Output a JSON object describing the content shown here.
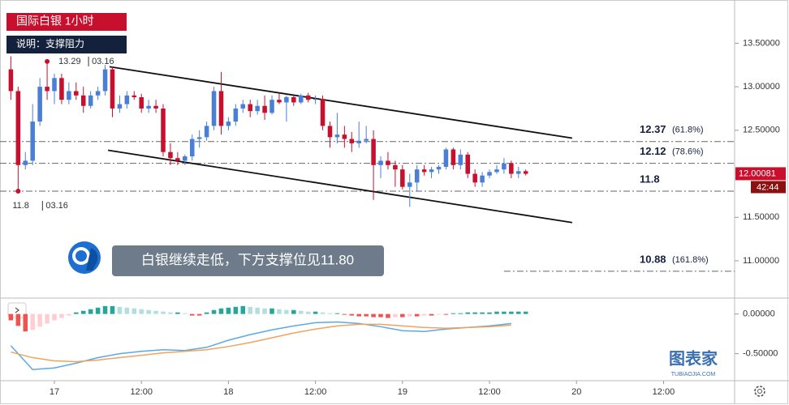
{
  "chart_data": {
    "type": "candlestick",
    "title": "国际白银 1小时",
    "subtitle": "说明：支撑阻力",
    "annotation": "白银继续走低，下方支撑位见11.80",
    "up_color": "#4a7fd6",
    "down_color": "#c8102e",
    "x": [
      0,
      1,
      2,
      3,
      4,
      5,
      6,
      7,
      8,
      9,
      10,
      11,
      12,
      13,
      14,
      15,
      16,
      17,
      18,
      19,
      20,
      21,
      22,
      23,
      24,
      25,
      26,
      27,
      28,
      29,
      30,
      31,
      32,
      33,
      34,
      35,
      36,
      37,
      38,
      39,
      40,
      41,
      42,
      43,
      44,
      45,
      46,
      47,
      48,
      49,
      50,
      51,
      52,
      53,
      54,
      55,
      56,
      57,
      58,
      59,
      60,
      61,
      62,
      63,
      64,
      65,
      66,
      67,
      68,
      69,
      70,
      71
    ],
    "open": [
      13.2,
      12.95,
      12.1,
      12.15,
      12.6,
      13.0,
      12.95,
      13.1,
      12.85,
      12.95,
      12.9,
      12.78,
      12.9,
      12.95,
      13.2,
      12.75,
      12.8,
      12.9,
      12.88,
      12.75,
      12.78,
      12.75,
      12.25,
      12.18,
      12.15,
      12.2,
      12.4,
      12.42,
      12.55,
      12.95,
      12.55,
      12.6,
      12.75,
      12.8,
      12.72,
      12.78,
      12.7,
      12.85,
      12.82,
      12.88,
      12.82,
      12.9,
      12.85,
      12.86,
      12.55,
      12.42,
      12.45,
      12.4,
      12.35,
      12.38,
      12.4,
      12.1,
      12.15,
      12.1,
      12.05,
      11.85,
      11.9,
      12.05,
      12.02,
      12.05,
      12.08,
      12.28,
      12.1,
      12.22,
      12.0,
      11.9,
      11.98,
      12.02,
      12.05,
      12.12,
      12.0,
      12.03
    ],
    "high": [
      13.35,
      13.0,
      12.25,
      12.8,
      13.1,
      13.29,
      13.15,
      13.15,
      13.05,
      13.05,
      13.0,
      12.95,
      13.0,
      13.25,
      13.23,
      12.9,
      12.95,
      12.95,
      12.92,
      12.85,
      12.85,
      12.8,
      12.35,
      12.25,
      12.22,
      12.45,
      12.5,
      12.6,
      13.0,
      13.17,
      12.65,
      12.8,
      12.85,
      12.85,
      12.85,
      12.9,
      12.9,
      12.92,
      12.9,
      12.9,
      12.92,
      12.93,
      12.9,
      12.9,
      12.6,
      12.7,
      12.55,
      12.48,
      12.6,
      12.55,
      12.5,
      12.2,
      12.25,
      12.15,
      12.1,
      12.0,
      12.1,
      12.1,
      12.08,
      12.1,
      12.3,
      12.3,
      12.28,
      12.25,
      12.05,
      12.02,
      12.05,
      12.1,
      12.18,
      12.15,
      12.08,
      12.05
    ],
    "low": [
      12.85,
      11.8,
      12.05,
      12.1,
      12.55,
      12.85,
      12.8,
      12.8,
      12.8,
      12.85,
      12.7,
      12.75,
      12.85,
      12.9,
      12.65,
      12.7,
      12.75,
      12.85,
      12.7,
      12.7,
      12.7,
      12.2,
      12.1,
      12.1,
      12.1,
      12.15,
      12.3,
      12.38,
      12.5,
      12.45,
      12.5,
      12.55,
      12.7,
      12.65,
      12.68,
      12.62,
      12.68,
      12.8,
      12.6,
      12.78,
      12.8,
      12.82,
      12.8,
      12.5,
      12.3,
      12.35,
      12.3,
      12.25,
      12.3,
      12.35,
      11.7,
      11.95,
      12.05,
      11.85,
      11.82,
      11.62,
      11.8,
      11.98,
      11.95,
      12.0,
      12.05,
      12.05,
      12.05,
      11.95,
      11.85,
      11.85,
      11.95,
      12.0,
      12.0,
      11.95,
      11.95,
      11.98
    ],
    "close": [
      12.95,
      12.1,
      12.15,
      12.6,
      13.0,
      12.95,
      13.1,
      12.85,
      12.95,
      12.9,
      12.78,
      12.9,
      12.95,
      13.2,
      12.75,
      12.8,
      12.9,
      12.88,
      12.75,
      12.78,
      12.75,
      12.25,
      12.18,
      12.15,
      12.2,
      12.4,
      12.42,
      12.55,
      12.95,
      12.55,
      12.6,
      12.75,
      12.8,
      12.72,
      12.78,
      12.7,
      12.85,
      12.82,
      12.88,
      12.82,
      12.9,
      12.85,
      12.86,
      12.55,
      12.42,
      12.45,
      12.4,
      12.35,
      12.38,
      12.4,
      12.1,
      12.15,
      12.1,
      12.05,
      11.85,
      11.9,
      12.05,
      12.02,
      12.05,
      12.08,
      12.28,
      12.1,
      12.22,
      12.0,
      11.9,
      11.98,
      12.02,
      12.05,
      12.12,
      12.0,
      12.03,
      12.0
    ],
    "xlim": [
      -1.5,
      99.8
    ],
    "xticks": [
      {
        "value": 6,
        "label": "17"
      },
      {
        "value": 18,
        "label": "12:00"
      },
      {
        "value": 30,
        "label": "18"
      },
      {
        "value": 42,
        "label": "12:00"
      },
      {
        "value": 54,
        "label": "19"
      },
      {
        "value": 66,
        "label": "12:00"
      },
      {
        "value": 78,
        "label": "20"
      },
      {
        "value": 90,
        "label": "12:00"
      }
    ],
    "ylim": [
      10.6,
      13.95
    ],
    "yticks": [
      {
        "value": 13.5,
        "label": "13.50000"
      },
      {
        "value": 13.0,
        "label": "13.00000"
      },
      {
        "value": 12.5,
        "label": "12.50000"
      },
      {
        "value": 11.5,
        "label": "11.50000"
      },
      {
        "value": 11.0,
        "label": "11.00000"
      }
    ],
    "trendlines": [
      {
        "x": [
          13.6,
          77.4
        ],
        "y": [
          13.23,
          12.41
        ]
      },
      {
        "x": [
          13.4,
          77.4
        ],
        "y": [
          12.27,
          11.44
        ]
      }
    ],
    "levels": [
      {
        "value": 12.37,
        "note": "(61.8%)",
        "from": -1.5
      },
      {
        "value": 12.12,
        "note": "(78.6%)",
        "from": -1.5
      },
      {
        "value": 11.8,
        "from": -1.5
      },
      {
        "value": 10.88,
        "note": "(161.8%)",
        "from": 68
      }
    ],
    "markers": [
      {
        "x": 5,
        "value": 13.29,
        "date": "03.16",
        "side": "right"
      },
      {
        "x": 1,
        "value": 11.8,
        "date": "03.16",
        "side": "below"
      }
    ],
    "last_price": {
      "value": 12.00081,
      "countdown": "42:44"
    },
    "macd": {
      "ylim": [
        -0.82,
        0.18
      ],
      "yticks": [
        {
          "value": 0,
          "label": "0.00000"
        },
        {
          "value": -0.5,
          "label": "-0.50000"
        }
      ],
      "histogram": [
        -0.08,
        -0.15,
        -0.22,
        -0.2,
        -0.16,
        -0.12,
        -0.08,
        -0.05,
        -0.02,
        0.02,
        0.04,
        0.06,
        0.08,
        0.1,
        0.1,
        0.09,
        0.08,
        0.07,
        0.06,
        0.05,
        0.04,
        0.03,
        0.02,
        0.02,
        0.01,
        -0.02,
        -0.02,
        0.02,
        0.05,
        0.07,
        0.08,
        0.09,
        0.1,
        0.09,
        0.08,
        0.07,
        0.07,
        0.06,
        0.05,
        0.05,
        0.04,
        0.03,
        0.03,
        0.02,
        0.01,
        0.01,
        -0.01,
        -0.02,
        -0.03,
        -0.03,
        -0.04,
        -0.04,
        -0.05,
        -0.04,
        -0.04,
        -0.03,
        -0.03,
        -0.02,
        -0.02,
        -0.01,
        -0.01,
        0.01,
        0.01,
        0.02,
        0.02,
        0.02,
        0.02,
        0.03,
        0.03,
        0.03,
        0.03,
        0.03
      ],
      "lines": [
        {
          "color": "#5aa9e6",
          "x": [
            0,
            3,
            6,
            9,
            12,
            15,
            18,
            21,
            24,
            27,
            30,
            33,
            36,
            39,
            42,
            45,
            48,
            51,
            54,
            57,
            60,
            63,
            66,
            69
          ],
          "values": [
            -0.4,
            -0.7,
            -0.68,
            -0.62,
            -0.55,
            -0.5,
            -0.47,
            -0.45,
            -0.46,
            -0.42,
            -0.33,
            -0.26,
            -0.2,
            -0.15,
            -0.11,
            -0.1,
            -0.12,
            -0.16,
            -0.21,
            -0.22,
            -0.19,
            -0.17,
            -0.15,
            -0.12
          ]
        },
        {
          "color": "#f0a35e",
          "x": [
            0,
            3,
            6,
            9,
            12,
            15,
            18,
            21,
            24,
            27,
            30,
            33,
            36,
            39,
            42,
            45,
            48,
            51,
            54,
            57,
            60,
            63,
            66,
            69
          ],
          "values": [
            -0.48,
            -0.55,
            -0.59,
            -0.6,
            -0.58,
            -0.55,
            -0.52,
            -0.49,
            -0.47,
            -0.45,
            -0.41,
            -0.36,
            -0.3,
            -0.24,
            -0.19,
            -0.15,
            -0.13,
            -0.13,
            -0.15,
            -0.17,
            -0.18,
            -0.17,
            -0.16,
            -0.14
          ]
        }
      ]
    },
    "watermark": {
      "title": "图表家",
      "url": "TUBIAOJIA.COM"
    }
  }
}
